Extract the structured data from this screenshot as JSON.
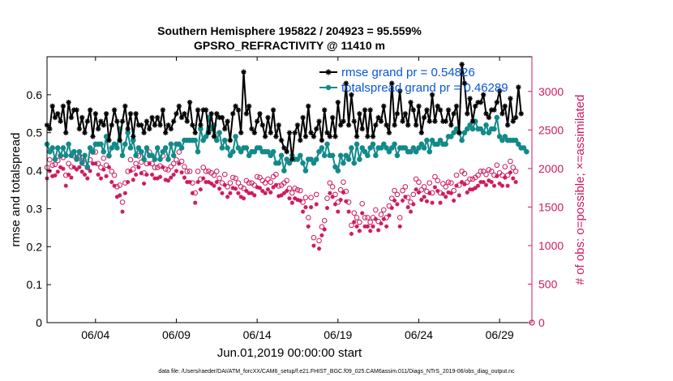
{
  "chart_data": {
    "type": "line",
    "title": "Southern Hemisphere 195822 / 204923 = 95.559%",
    "subtitle": "GPSRO_REFRACTIVITY @ 11410 m",
    "xlabel": "Jun.01,2019 00:00:00 start",
    "ylabel": "rmse and totalspread",
    "ylabel_right": "# of obs: o=possible; ×=assimilated",
    "footnote": "data file: /Users/raeder/DAI/ATM_forcXX/CAM6_setup/f.e21.FHIST_BGC.f09_025.CAM6assim.011/Diags_NTrS_2019-06/obs_diag_output.nc",
    "xlim": [
      1.0,
      31.0
    ],
    "ylim": [
      0,
      0.7
    ],
    "ylim_right": [
      0,
      3450
    ],
    "x_ticks": [
      4,
      9,
      14,
      19,
      24,
      29
    ],
    "x_tick_labels": [
      "06/04",
      "06/09",
      "06/14",
      "06/19",
      "06/24",
      "06/29"
    ],
    "y_ticks": [
      0,
      0.1,
      0.2,
      0.3,
      0.4,
      0.5,
      0.6
    ],
    "y_tick_labels": [
      "0",
      "0.1",
      "0.2",
      "0.3",
      "0.4",
      "0.5",
      "0.6"
    ],
    "y_ticks_right": [
      0,
      500,
      1000,
      1500,
      2000,
      2500,
      3000
    ],
    "y_tick_labels_right": [
      "0",
      "500",
      "1000",
      "1500",
      "2000",
      "2500",
      "3000"
    ],
    "colors": {
      "rmse": "#000000",
      "spread": "#138a8a",
      "obs": "#cc1a5e",
      "legend_text": "#0a56d6"
    },
    "series": [
      {
        "name": "rmse grand pr = 0.54826",
        "color": "#000000",
        "marker": "star",
        "values": [
          0.52,
          0.51,
          0.57,
          0.54,
          0.55,
          0.53,
          0.57,
          0.5,
          0.58,
          0.54,
          0.56,
          0.56,
          0.51,
          0.54,
          0.5,
          0.53,
          0.56,
          0.49,
          0.55,
          0.51,
          0.53,
          0.52,
          0.55,
          0.48,
          0.52,
          0.56,
          0.53,
          0.48,
          0.53,
          0.57,
          0.51,
          0.55,
          0.49,
          0.55,
          0.52,
          0.52,
          0.5,
          0.53,
          0.51,
          0.54,
          0.52,
          0.54,
          0.52,
          0.56,
          0.5,
          0.52,
          0.51,
          0.53,
          0.55,
          0.57,
          0.54,
          0.55,
          0.53,
          0.58,
          0.52,
          0.5,
          0.56,
          0.52,
          0.56,
          0.56,
          0.5,
          0.55,
          0.49,
          0.55,
          0.54,
          0.54,
          0.51,
          0.53,
          0.48,
          0.55,
          0.57,
          0.56,
          0.5,
          0.66,
          0.55,
          0.57,
          0.51,
          0.5,
          0.53,
          0.55,
          0.52,
          0.49,
          0.54,
          0.5,
          0.56,
          0.49,
          0.52,
          0.48,
          0.46,
          0.45,
          0.5,
          0.43,
          0.5,
          0.52,
          0.48,
          0.54,
          0.49,
          0.57,
          0.5,
          0.49,
          0.51,
          0.53,
          0.48,
          0.56,
          0.5,
          0.49,
          0.54,
          0.49,
          0.58,
          0.52,
          0.53,
          0.63,
          0.52,
          0.6,
          0.53,
          0.49,
          0.55,
          0.51,
          0.56,
          0.49,
          0.56,
          0.49,
          0.52,
          0.54,
          0.53,
          0.57,
          0.52,
          0.5,
          0.63,
          0.52,
          0.55,
          0.61,
          0.53,
          0.55,
          0.52,
          0.58,
          0.56,
          0.52,
          0.57,
          0.5,
          0.54,
          0.56,
          0.53,
          0.6,
          0.53,
          0.57,
          0.56,
          0.53,
          0.53,
          0.56,
          0.52,
          0.55,
          0.57,
          0.5,
          0.68,
          0.63,
          0.55,
          0.59,
          0.53,
          0.57,
          0.58,
          0.58,
          0.6,
          0.55,
          0.54,
          0.56,
          0.56,
          0.58,
          0.61,
          0.55,
          0.57,
          0.52,
          0.59,
          0.53,
          0.54,
          0.62,
          0.55
        ]
      },
      {
        "name": "totalspread grand pr = 0.46289",
        "color": "#138a8a",
        "marker": "circle",
        "values": [
          0.47,
          0.45,
          0.46,
          0.43,
          0.46,
          0.44,
          0.46,
          0.44,
          0.47,
          0.44,
          0.45,
          0.43,
          0.45,
          0.42,
          0.44,
          0.41,
          0.46,
          0.45,
          0.47,
          0.47,
          0.47,
          0.45,
          0.49,
          0.44,
          0.46,
          0.47,
          0.46,
          0.51,
          0.44,
          0.47,
          0.5,
          0.46,
          0.48,
          0.44,
          0.46,
          0.45,
          0.43,
          0.46,
          0.44,
          0.44,
          0.43,
          0.46,
          0.43,
          0.45,
          0.46,
          0.43,
          0.47,
          0.44,
          0.47,
          0.47,
          0.46,
          0.48,
          0.48,
          0.48,
          0.48,
          0.48,
          0.45,
          0.51,
          0.48,
          0.49,
          0.54,
          0.51,
          0.52,
          0.48,
          0.5,
          0.46,
          0.48,
          0.46,
          0.44,
          0.45,
          0.49,
          0.46,
          0.45,
          0.46,
          0.46,
          0.44,
          0.45,
          0.45,
          0.46,
          0.46,
          0.45,
          0.45,
          0.45,
          0.44,
          0.45,
          0.42,
          0.42,
          0.44,
          0.4,
          0.43,
          0.42,
          0.44,
          0.43,
          0.43,
          0.44,
          0.42,
          0.4,
          0.43,
          0.43,
          0.42,
          0.43,
          0.45,
          0.46,
          0.44,
          0.47,
          0.44,
          0.44,
          0.41,
          0.4,
          0.44,
          0.42,
          0.44,
          0.43,
          0.46,
          0.42,
          0.47,
          0.43,
          0.46,
          0.45,
          0.44,
          0.46,
          0.47,
          0.44,
          0.46,
          0.46,
          0.47,
          0.46,
          0.45,
          0.46,
          0.47,
          0.44,
          0.46,
          0.46,
          0.46,
          0.45,
          0.45,
          0.46,
          0.45,
          0.46,
          0.47,
          0.46,
          0.48,
          0.45,
          0.48,
          0.47,
          0.47,
          0.48,
          0.47,
          0.47,
          0.49,
          0.49,
          0.5,
          0.51,
          0.5,
          0.48,
          0.5,
          0.51,
          0.52,
          0.51,
          0.53,
          0.51,
          0.51,
          0.5,
          0.52,
          0.5,
          0.51,
          0.51,
          0.54,
          0.49,
          0.48,
          0.49,
          0.48,
          0.48,
          0.48,
          0.48,
          0.47,
          0.46,
          0.46,
          0.45
        ]
      }
    ],
    "obs_possible": [
      1950,
      2050,
      1980,
      1990,
      2040,
      2100,
      2080,
      1850,
      2000,
      1960,
      2100,
      2070,
      2100,
      2040,
      2000,
      1950,
      2050,
      2150,
      2150,
      2000,
      1950,
      2070,
      1980,
      2100,
      1900,
      1850,
      1700,
      1720,
      1500,
      1750,
      1900,
      2050,
      1930,
      2000,
      2100,
      2020,
      1880,
      2000,
      2150,
      2000,
      1950,
      1950,
      1970,
      2100,
      1930,
      1920,
      1960,
      2000,
      2050,
      2150,
      2030,
      1960,
      1900,
      1900,
      1750,
      1620,
      1900,
      1800,
      1950,
      1900,
      1900,
      1880,
      1850,
      1900,
      1810,
      1750,
      1860,
      1700,
      1750,
      1820,
      1810,
      1750,
      1700,
      1680,
      1780,
      1750,
      1750,
      1720,
      1830,
      1820,
      1780,
      1750,
      1800,
      1760,
      1830,
      1860,
      1710,
      1720,
      1750,
      1780,
      1680,
      1620,
      1680,
      1660,
      1650,
      1500,
      1560,
      1300,
      1560,
      1040,
      1600,
      1000,
      1180,
      1260,
      1550,
      1750,
      1700,
      1600,
      1500,
      1660,
      1760,
      1640,
      1500,
      1200,
      1360,
      1300,
      1240,
      1480,
      1300,
      1300,
      1240,
      1300,
      1400,
      1250,
      1340,
      1400,
      1300,
      1450,
      1550,
      1650,
      1600,
      1300,
      1650,
      1700,
      1560,
      1500,
      1600,
      1800,
      1760,
      1660,
      1700,
      1640,
      1750,
      1620,
      1830,
      1780,
      1620,
      1740,
      1700,
      1760,
      1750,
      1650,
      1850,
      1720,
      1900,
      1870,
      1760,
      1800,
      1800,
      1820,
      1850,
      1900,
      1900,
      1860,
      1920,
      1900,
      1850,
      1980,
      1880,
      1850,
      1960,
      1850,
      2030,
      1950,
      1900
    ]
  }
}
